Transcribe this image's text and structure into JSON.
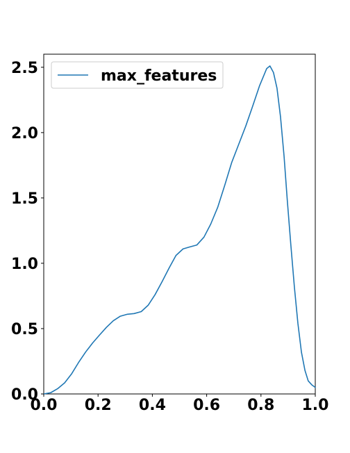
{
  "chart_data": {
    "type": "line",
    "title": "",
    "xlabel": "",
    "ylabel": "",
    "xlim": [
      0.0,
      1.0
    ],
    "ylim": [
      0.0,
      2.6
    ],
    "x_ticks": [
      0.0,
      0.2,
      0.4,
      0.6,
      0.8,
      1.0
    ],
    "x_tick_labels": [
      "0.0",
      "0.2",
      "0.4",
      "0.6",
      "0.8",
      "1.0"
    ],
    "y_ticks": [
      0.0,
      0.5,
      1.0,
      1.5,
      2.0,
      2.5
    ],
    "y_tick_labels": [
      "0.0",
      "0.5",
      "1.0",
      "1.5",
      "2.0",
      "2.5"
    ],
    "grid": false,
    "legend": {
      "position": "upper-left",
      "entries": [
        "max_features"
      ]
    },
    "series": [
      {
        "name": "max_features",
        "color": "#1f77b4",
        "points": [
          [
            0.0,
            0.0
          ],
          [
            0.026,
            0.01
          ],
          [
            0.051,
            0.04
          ],
          [
            0.077,
            0.085
          ],
          [
            0.103,
            0.155
          ],
          [
            0.128,
            0.24
          ],
          [
            0.154,
            0.32
          ],
          [
            0.18,
            0.39
          ],
          [
            0.205,
            0.45
          ],
          [
            0.231,
            0.51
          ],
          [
            0.256,
            0.56
          ],
          [
            0.282,
            0.595
          ],
          [
            0.308,
            0.61
          ],
          [
            0.333,
            0.615
          ],
          [
            0.359,
            0.63
          ],
          [
            0.385,
            0.68
          ],
          [
            0.41,
            0.76
          ],
          [
            0.436,
            0.86
          ],
          [
            0.462,
            0.965
          ],
          [
            0.487,
            1.06
          ],
          [
            0.513,
            1.11
          ],
          [
            0.538,
            1.125
          ],
          [
            0.564,
            1.14
          ],
          [
            0.59,
            1.2
          ],
          [
            0.615,
            1.3
          ],
          [
            0.641,
            1.43
          ],
          [
            0.667,
            1.6
          ],
          [
            0.692,
            1.77
          ],
          [
            0.718,
            1.91
          ],
          [
            0.744,
            2.05
          ],
          [
            0.769,
            2.2
          ],
          [
            0.795,
            2.36
          ],
          [
            0.821,
            2.49
          ],
          [
            0.833,
            2.51
          ],
          [
            0.846,
            2.46
          ],
          [
            0.859,
            2.34
          ],
          [
            0.872,
            2.12
          ],
          [
            0.885,
            1.82
          ],
          [
            0.897,
            1.48
          ],
          [
            0.91,
            1.14
          ],
          [
            0.923,
            0.82
          ],
          [
            0.936,
            0.54
          ],
          [
            0.949,
            0.32
          ],
          [
            0.962,
            0.18
          ],
          [
            0.974,
            0.1
          ],
          [
            0.987,
            0.07
          ],
          [
            1.0,
            0.05
          ]
        ]
      }
    ]
  }
}
